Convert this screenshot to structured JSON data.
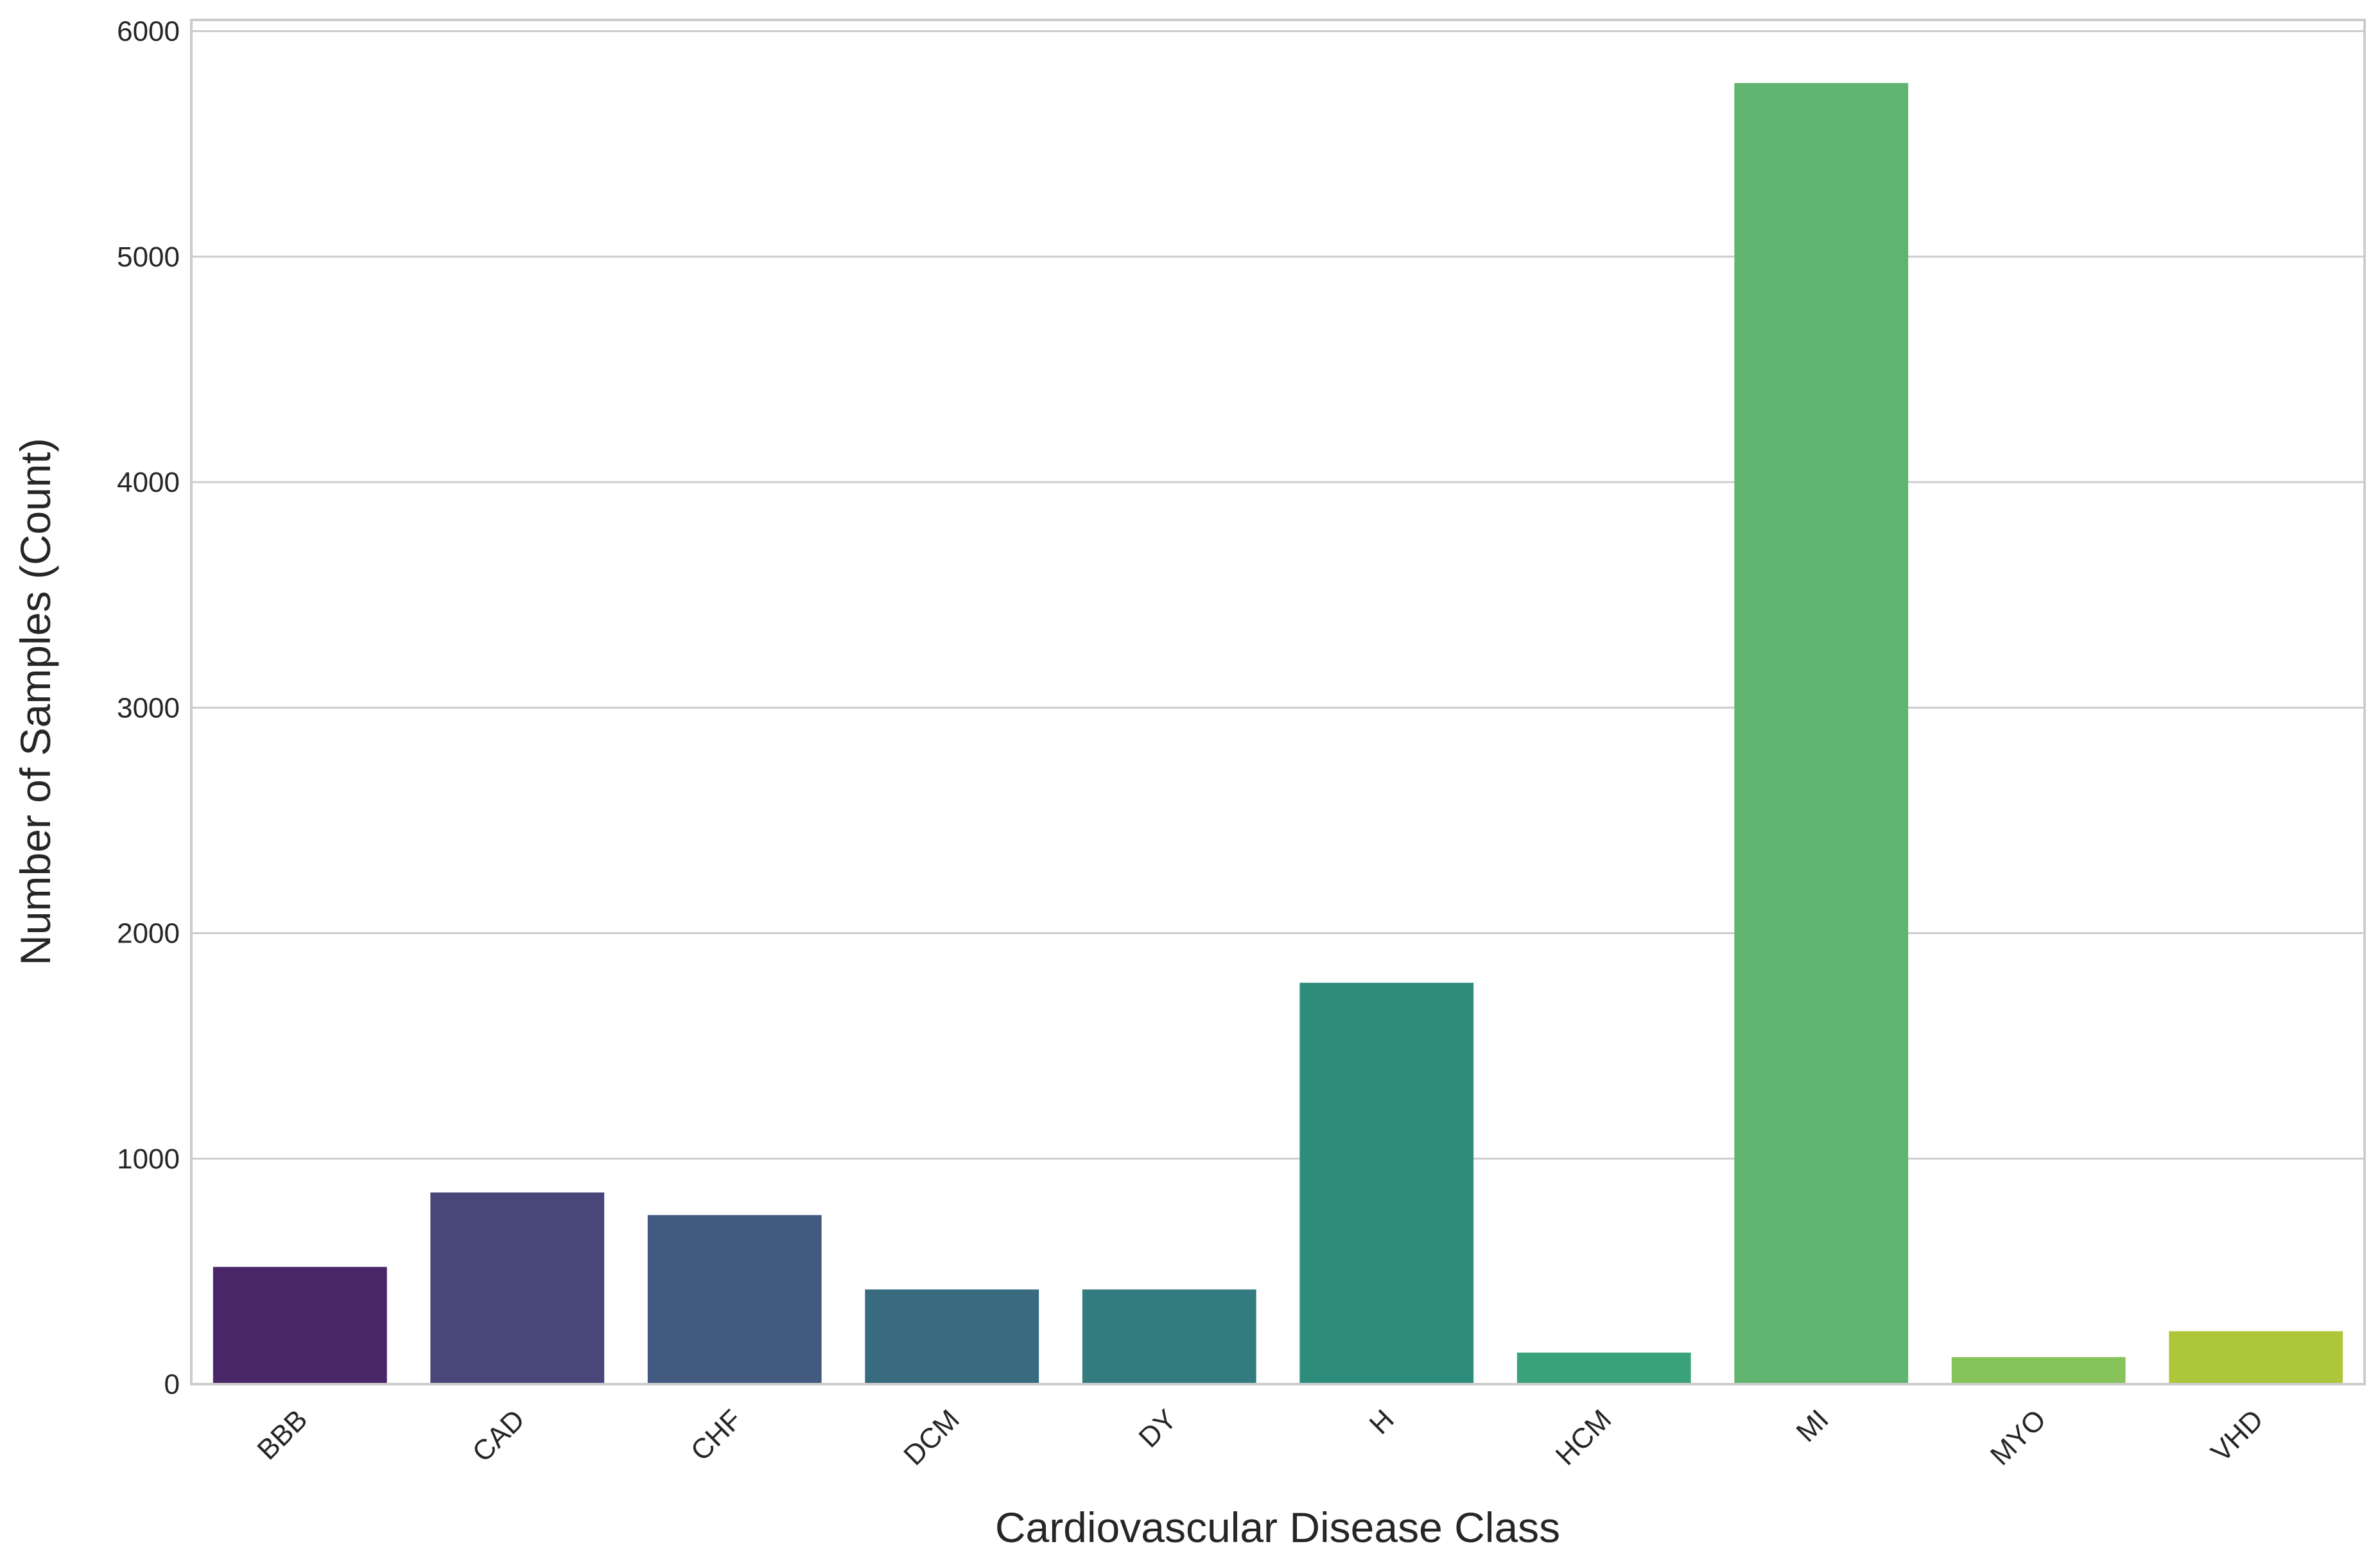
{
  "chart_data": {
    "type": "bar",
    "title": "",
    "xlabel": "Cardiovascular Disease Class",
    "ylabel": "Number of Samples (Count)",
    "categories": [
      "BBB",
      "CAD",
      "CHF",
      "DCM",
      "DY",
      "H",
      "HCM",
      "MI",
      "MYO",
      "VHD"
    ],
    "values": [
      520,
      850,
      750,
      420,
      420,
      1780,
      140,
      5770,
      120,
      235
    ],
    "colors": [
      "#482668",
      "#49477a",
      "#425a80",
      "#386b7f",
      "#337b7f",
      "#2e8c7a",
      "#3aa27a",
      "#60b46f",
      "#87c35b",
      "#aec73a"
    ],
    "ylim": [
      0,
      6050
    ],
    "yticks": [
      0,
      1000,
      2000,
      3000,
      4000,
      5000,
      6000
    ],
    "ytick_labels": [
      "0",
      "1000",
      "2000",
      "3000",
      "4000",
      "5000",
      "6000"
    ],
    "grid": true,
    "legend": "none"
  }
}
